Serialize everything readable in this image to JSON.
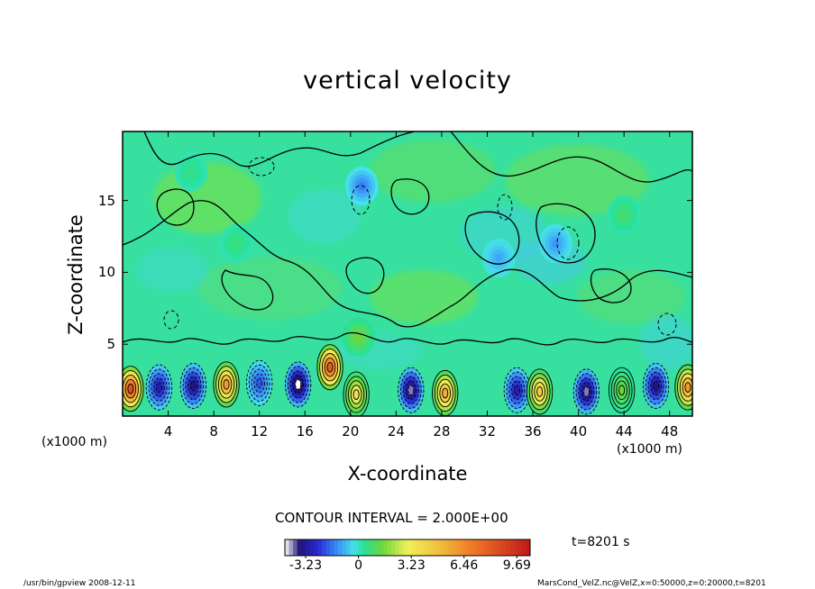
{
  "chart_data": {
    "type": "heatmap",
    "title": "vertical velocity",
    "xlabel": "X-coordinate",
    "ylabel": "Z-coordinate",
    "x_unit_label": "(x1000 m)",
    "xlim": [
      0,
      50
    ],
    "ylim": [
      0,
      19.8
    ],
    "x_ticks": [
      "4",
      "8",
      "12",
      "16",
      "20",
      "24",
      "28",
      "32",
      "36",
      "40",
      "44",
      "48"
    ],
    "y_ticks": [
      "5",
      "10",
      "15"
    ],
    "contour_interval_text": "CONTOUR INTERVAL = 2.000E+00",
    "time_text": "t=8201 s",
    "colorbar": {
      "range": [
        -4.5,
        10.5
      ],
      "tick_labels": [
        "-3.23",
        "0",
        "3.23",
        "6.46",
        "9.69"
      ]
    },
    "cells": [
      {
        "x": 0.7,
        "z": 1.9,
        "value": 8.5
      },
      {
        "x": 3.2,
        "z": 2.0,
        "value": -3.0
      },
      {
        "x": 6.2,
        "z": 2.1,
        "value": -3.5
      },
      {
        "x": 9.1,
        "z": 2.2,
        "value": 6.0
      },
      {
        "x": 12.0,
        "z": 2.3,
        "value": -2.0
      },
      {
        "x": 15.4,
        "z": 2.2,
        "value": -4.5
      },
      {
        "x": 18.2,
        "z": 3.4,
        "value": 8.0
      },
      {
        "x": 20.5,
        "z": 1.5,
        "value": 3.5
      },
      {
        "x": 25.3,
        "z": 1.8,
        "value": -4.0
      },
      {
        "x": 28.3,
        "z": 1.6,
        "value": 5.5
      },
      {
        "x": 34.6,
        "z": 1.8,
        "value": -3.0
      },
      {
        "x": 36.6,
        "z": 1.7,
        "value": 4.5
      },
      {
        "x": 40.7,
        "z": 1.7,
        "value": -4.0
      },
      {
        "x": 43.8,
        "z": 1.8,
        "value": 1.5
      },
      {
        "x": 46.8,
        "z": 2.1,
        "value": -3.5
      },
      {
        "x": 49.6,
        "z": 2.0,
        "value": 6.0
      },
      {
        "x": 20.7,
        "z": 5.5,
        "value": 1.5
      },
      {
        "x": 21.0,
        "z": 16.0,
        "value": -1.5
      },
      {
        "x": 33.0,
        "z": 11.0,
        "value": -1.0
      },
      {
        "x": 38.0,
        "z": 12.0,
        "value": -1.2
      },
      {
        "x": 44.0,
        "z": 14.0,
        "value": 0.8
      },
      {
        "x": 10.0,
        "z": 12.0,
        "value": 0.6
      },
      {
        "x": 6.0,
        "z": 17.0,
        "value": 0.5
      }
    ]
  },
  "footer": {
    "left": "/usr/bin/gpview   2008-12-11",
    "right": "MarsCond_VelZ.nc@VelZ,x=0:50000,z=0:20000,t=8201"
  }
}
